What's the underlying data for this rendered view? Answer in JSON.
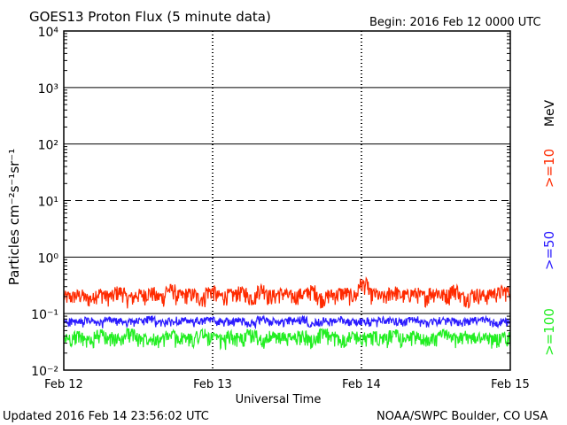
{
  "header": {
    "title": "GOES13 Proton Flux (5 minute data)",
    "begin": "Begin: 2016 Feb 12 0000 UTC"
  },
  "footer": {
    "updated": "Updated 2016 Feb 14 23:56:02 UTC",
    "credit": "NOAA/SWPC Boulder, CO USA"
  },
  "chart_data": {
    "type": "line",
    "title": "GOES13 Proton Flux (5 minute data)",
    "xlabel": "Universal Time",
    "ylabel": "Particles cm⁻²s⁻¹sr⁻¹",
    "yscale": "log",
    "ylim": [
      0.01,
      10000
    ],
    "ytick_labels": [
      "10⁴",
      "10³",
      "10²",
      "10¹",
      "10⁰",
      "10⁻¹",
      "10⁻²"
    ],
    "x_ticks": [
      "Feb 12",
      "Feb 13",
      "Feb 14",
      "Feb 15"
    ],
    "xlim": [
      "2016-02-12T00:00",
      "2016-02-15T00:00"
    ],
    "day_markers": [
      "Feb 13",
      "Feb 14"
    ],
    "right_label": "MeV",
    "series": [
      {
        "name": ">=10",
        "color": "#ff2a00",
        "level_range": [
          0.1,
          0.4
        ],
        "values": [
          0.16,
          0.18,
          0.14,
          0.21,
          0.17,
          0.24,
          0.15,
          0.19,
          0.22,
          0.16,
          0.28,
          0.18,
          0.2,
          0.15,
          0.25,
          0.17,
          0.19,
          0.23,
          0.16,
          0.3,
          0.18,
          0.21,
          0.17,
          0.2,
          0.26,
          0.15,
          0.19,
          0.22,
          0.18,
          0.45,
          0.2,
          0.16,
          0.24,
          0.18,
          0.21,
          0.17,
          0.23,
          0.19,
          0.28,
          0.16,
          0.2,
          0.18,
          0.22,
          0.25
        ]
      },
      {
        "name": ">=50",
        "color": "#2a1aff",
        "level_range": [
          0.05,
          0.1
        ],
        "values": [
          0.07,
          0.065,
          0.075,
          0.06,
          0.08,
          0.07,
          0.068,
          0.072,
          0.085,
          0.064,
          0.07,
          0.078,
          0.066,
          0.073,
          0.08,
          0.069,
          0.071,
          0.076,
          0.062,
          0.08,
          0.07,
          0.067,
          0.074,
          0.079,
          0.065,
          0.072,
          0.07,
          0.083,
          0.068,
          0.071,
          0.066,
          0.077,
          0.073,
          0.069,
          0.08,
          0.064,
          0.072,
          0.076,
          0.07,
          0.068,
          0.074,
          0.081,
          0.066,
          0.07
        ]
      },
      {
        "name": ">=100",
        "color": "#22ee22",
        "level_range": [
          0.02,
          0.07
        ],
        "values": [
          0.03,
          0.035,
          0.025,
          0.04,
          0.032,
          0.028,
          0.045,
          0.03,
          0.034,
          0.027,
          0.038,
          0.031,
          0.029,
          0.042,
          0.033,
          0.026,
          0.036,
          0.03,
          0.04,
          0.028,
          0.035,
          0.032,
          0.03,
          0.037,
          0.027,
          0.041,
          0.033,
          0.029,
          0.036,
          0.031,
          0.034,
          0.028,
          0.039,
          0.03,
          0.035,
          0.027,
          0.033,
          0.04,
          0.029,
          0.036,
          0.031,
          0.034,
          0.028,
          0.032
        ]
      }
    ]
  }
}
